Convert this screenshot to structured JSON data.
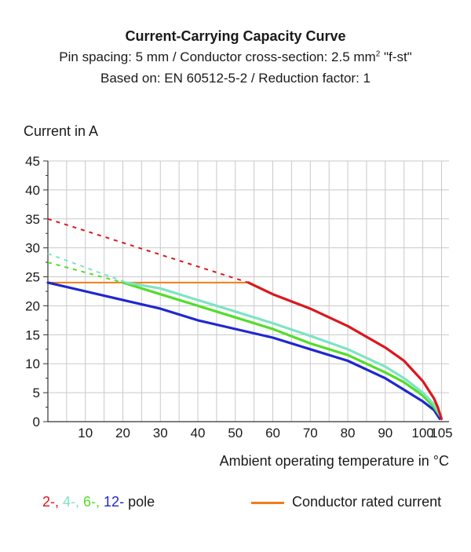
{
  "chart_data": {
    "type": "line",
    "title": "Current-Carrying Capacity Curve",
    "subtitle_1_prefix": "Pin spacing: 5 mm / Conductor cross-section: 2.5 mm",
    "subtitle_1_sup": "2",
    "subtitle_1_suffix": " \"f-st\"",
    "subtitle_2": "Based on: EN 60512-5-2 / Reduction factor: 1",
    "ylabel": "Current in A",
    "xlabel": "Ambient operating temperature in °C",
    "xlim": [
      0,
      107
    ],
    "ylim": [
      0,
      45
    ],
    "xticks": [
      10,
      20,
      30,
      40,
      50,
      60,
      70,
      80,
      90,
      100,
      105
    ],
    "yticks": [
      0,
      5,
      10,
      15,
      20,
      25,
      30,
      35,
      40,
      45
    ],
    "grid": true,
    "rated_current": {
      "name": "Conductor rated current",
      "color": "#f07d1a",
      "value": 24,
      "x_end": 53.5
    },
    "series": [
      {
        "pole": "2-",
        "color": "#d9181e",
        "dashed": [
          [
            0,
            35
          ],
          [
            53.5,
            24
          ]
        ],
        "solid": [
          [
            53.5,
            24
          ],
          [
            60,
            22
          ],
          [
            70,
            19.5
          ],
          [
            80,
            16.5
          ],
          [
            90,
            12.8
          ],
          [
            95,
            10.5
          ],
          [
            100,
            7
          ],
          [
            103,
            4
          ],
          [
            104,
            2.5
          ],
          [
            105,
            0.5
          ]
        ]
      },
      {
        "pole": "4-",
        "color": "#7fe3c4",
        "dashed": [
          [
            0,
            29
          ],
          [
            21,
            24
          ]
        ],
        "solid": [
          [
            21,
            24
          ],
          [
            30,
            23
          ],
          [
            40,
            21
          ],
          [
            50,
            19
          ],
          [
            60,
            17
          ],
          [
            70,
            14.8
          ],
          [
            80,
            12.5
          ],
          [
            90,
            9.5
          ],
          [
            95,
            7.5
          ],
          [
            100,
            5
          ],
          [
            103,
            3
          ],
          [
            104.7,
            1
          ]
        ]
      },
      {
        "pole": "6-",
        "color": "#52dd2a",
        "dashed": [
          [
            0,
            27.5
          ],
          [
            20,
            24
          ]
        ],
        "solid": [
          [
            20,
            24
          ],
          [
            30,
            22
          ],
          [
            40,
            20
          ],
          [
            50,
            18
          ],
          [
            60,
            16
          ],
          [
            70,
            13.5
          ],
          [
            80,
            11.5
          ],
          [
            90,
            8.5
          ],
          [
            95,
            6.8
          ],
          [
            100,
            4.5
          ],
          [
            103,
            2.5
          ],
          [
            104.6,
            1
          ]
        ]
      },
      {
        "pole": "12-",
        "color": "#1f27d0",
        "dashed": [],
        "solid": [
          [
            0,
            24
          ],
          [
            10,
            22.5
          ],
          [
            20,
            21
          ],
          [
            30,
            19.5
          ],
          [
            40,
            17.5
          ],
          [
            50,
            16
          ],
          [
            60,
            14.5
          ],
          [
            70,
            12.5
          ],
          [
            80,
            10.5
          ],
          [
            90,
            7.5
          ],
          [
            95,
            5.5
          ],
          [
            100,
            3.5
          ],
          [
            103,
            2
          ],
          [
            104.5,
            0.5
          ]
        ]
      }
    ],
    "legend_pole_suffix": "pole"
  }
}
